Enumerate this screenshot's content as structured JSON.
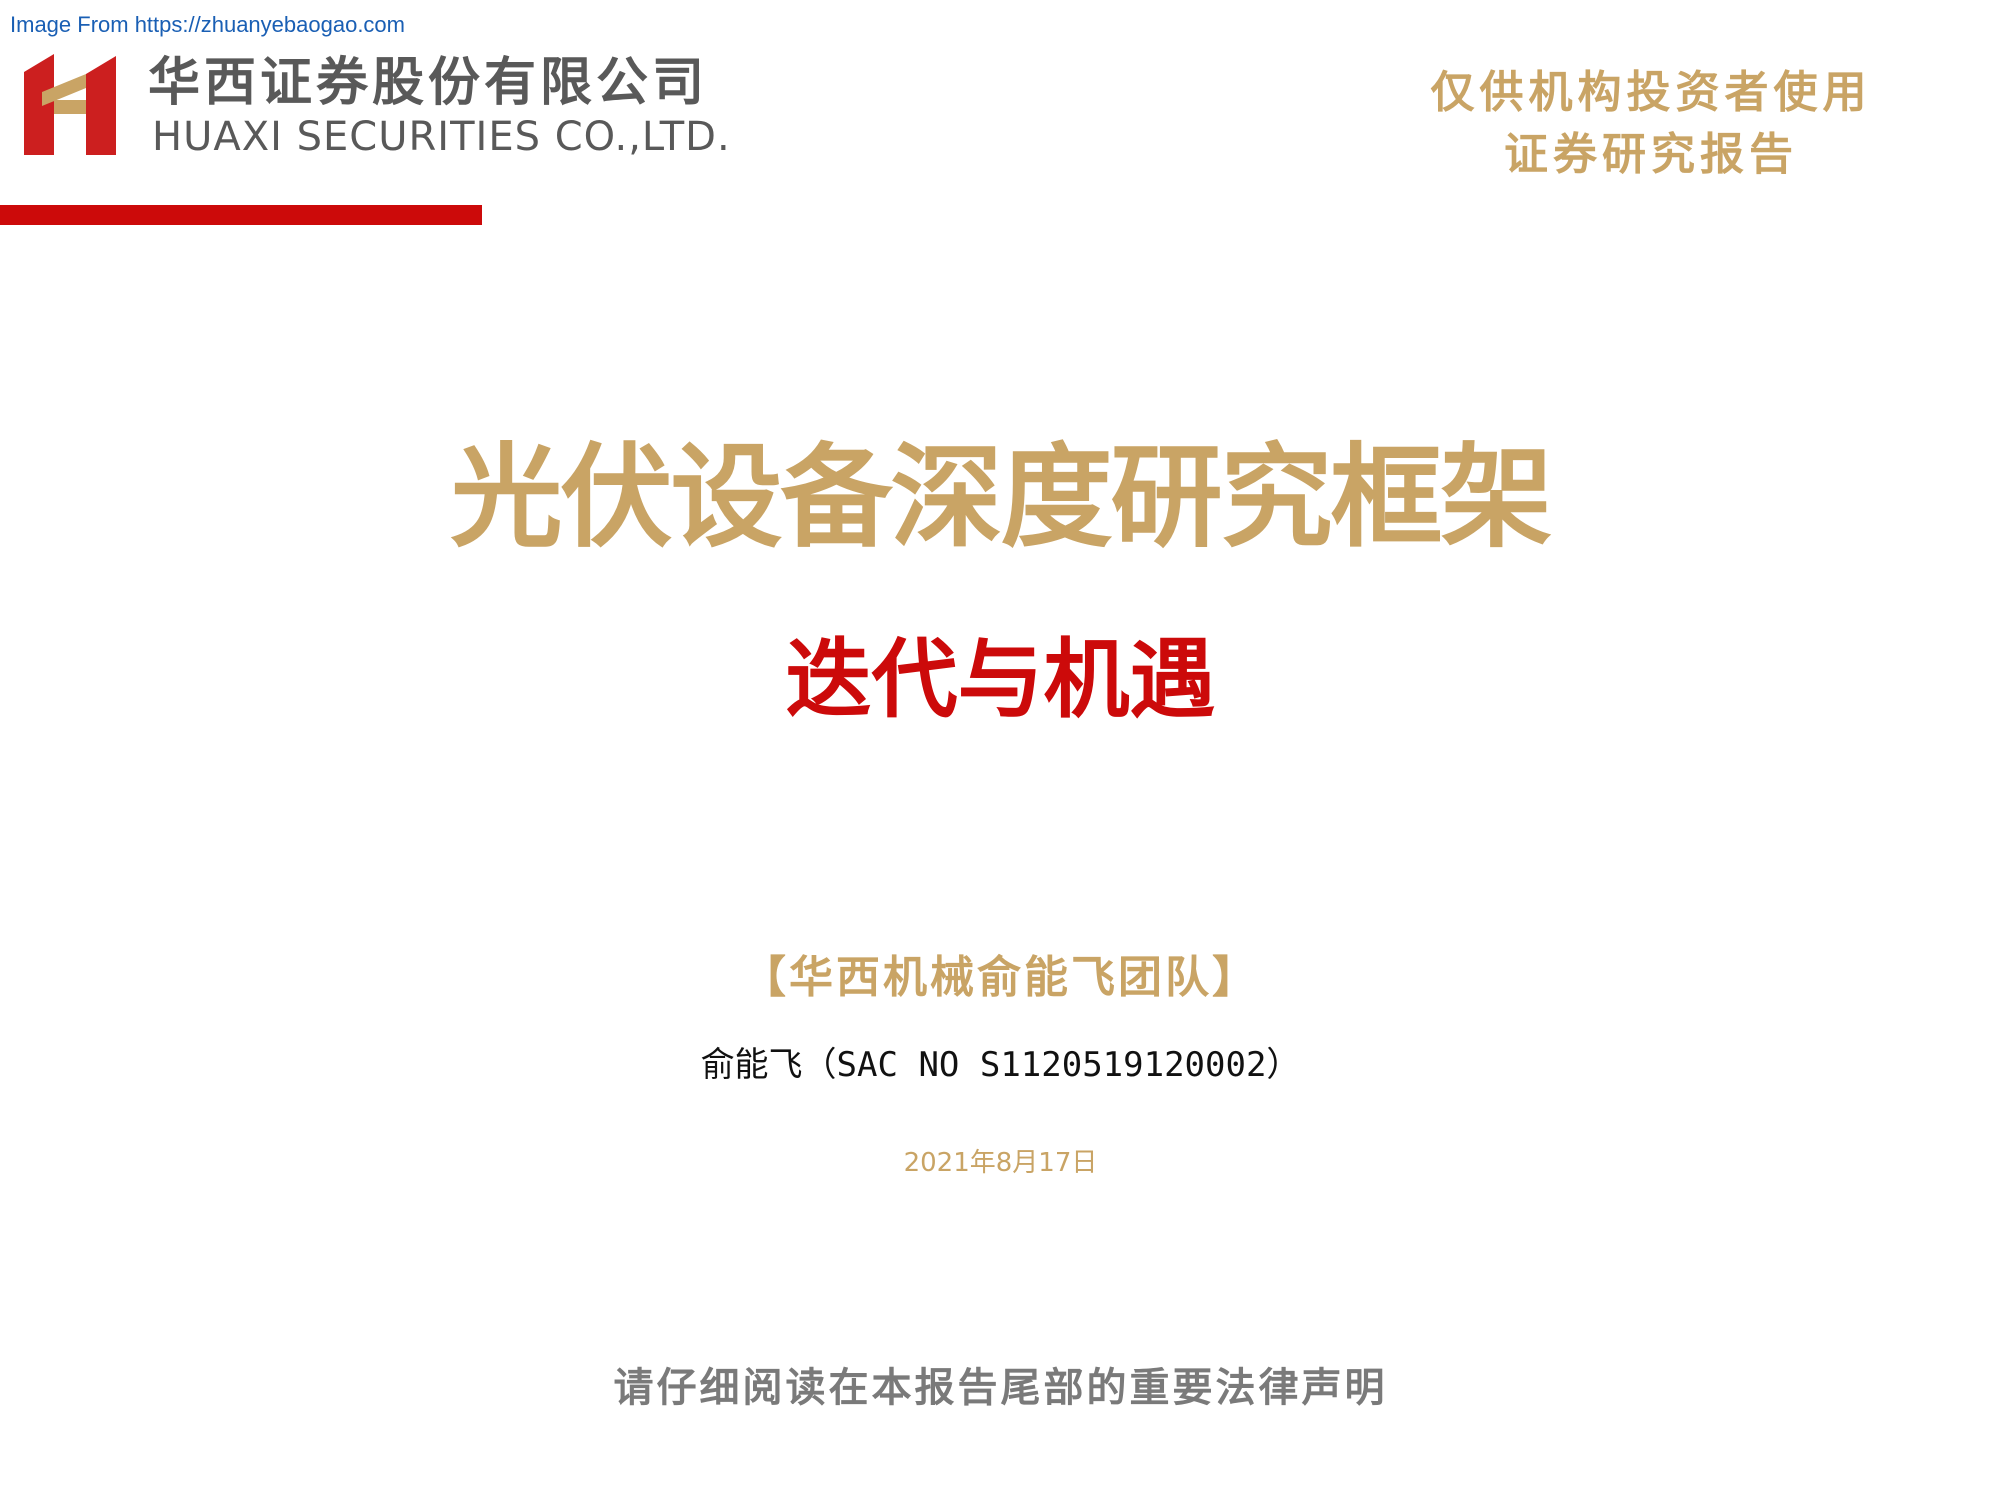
{
  "source": {
    "link_text": "Image From https://zhuanyebaogao.com"
  },
  "header": {
    "company_cn": "华西证券股份有限公司",
    "company_en": "HUAXI SECURITIES CO.,LTD.",
    "logo_colors": {
      "red": "#cc1f1f",
      "gold": "#c9a465"
    },
    "rule_color": "#cc0a0a",
    "disclaimer_line1": "仅供机构投资者使用",
    "disclaimer_line2": "证券研究报告"
  },
  "cover": {
    "title": "光伏设备深度研究框架",
    "subtitle": "迭代与机遇",
    "team": "【华西机械俞能飞团队】",
    "author": "俞能飞（SAC NO S1120519120002）",
    "date": "2021年8月17日",
    "legal_notice": "请仔细阅读在本报告尾部的重要法律声明"
  },
  "colors": {
    "gold": "#c9a465",
    "red": "#cc0a0a",
    "gray": "#7a7a7a",
    "link": "#1a5fb4"
  }
}
